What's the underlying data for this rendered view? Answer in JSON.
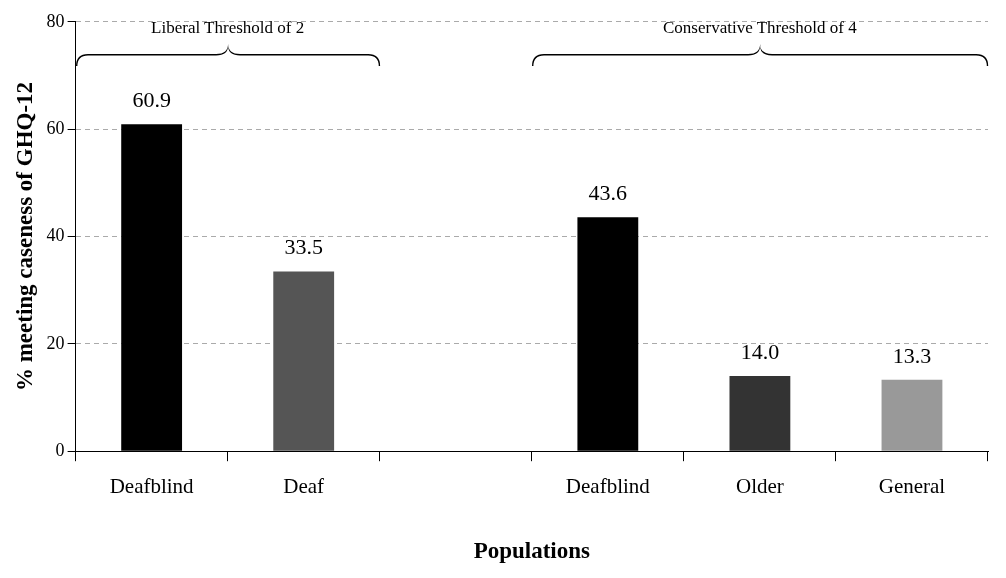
{
  "chart_data": {
    "type": "bar",
    "xlabel": "Populations",
    "ylabel": "% meeting caseness of GHQ-12",
    "categories": [
      "Deafblind",
      "Deaf",
      null,
      "Deafblind",
      "Older",
      "General"
    ],
    "values": [
      60.9,
      33.5,
      null,
      43.6,
      14.0,
      13.3
    ],
    "value_labels": [
      "60.9",
      "33.5",
      null,
      "43.6",
      "14.0",
      "13.3"
    ],
    "colors": [
      "#000000",
      "#555555",
      "#000000",
      "#000000",
      "#333333",
      "#999999"
    ],
    "ylim": [
      0,
      80
    ],
    "yticks": [
      0,
      20,
      40,
      60,
      80
    ],
    "grid": "y",
    "legend": false,
    "annotations": [
      "Liberal Threshold of 2",
      "Conservative Threshold of 4"
    ]
  }
}
